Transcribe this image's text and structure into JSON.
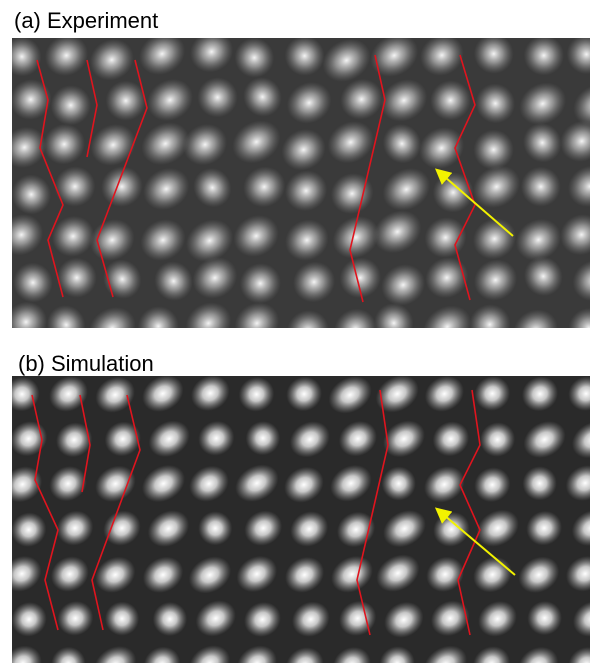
{
  "panels": [
    {
      "label": "(a) Experiment"
    },
    {
      "label": "(b) Simulation"
    }
  ]
}
